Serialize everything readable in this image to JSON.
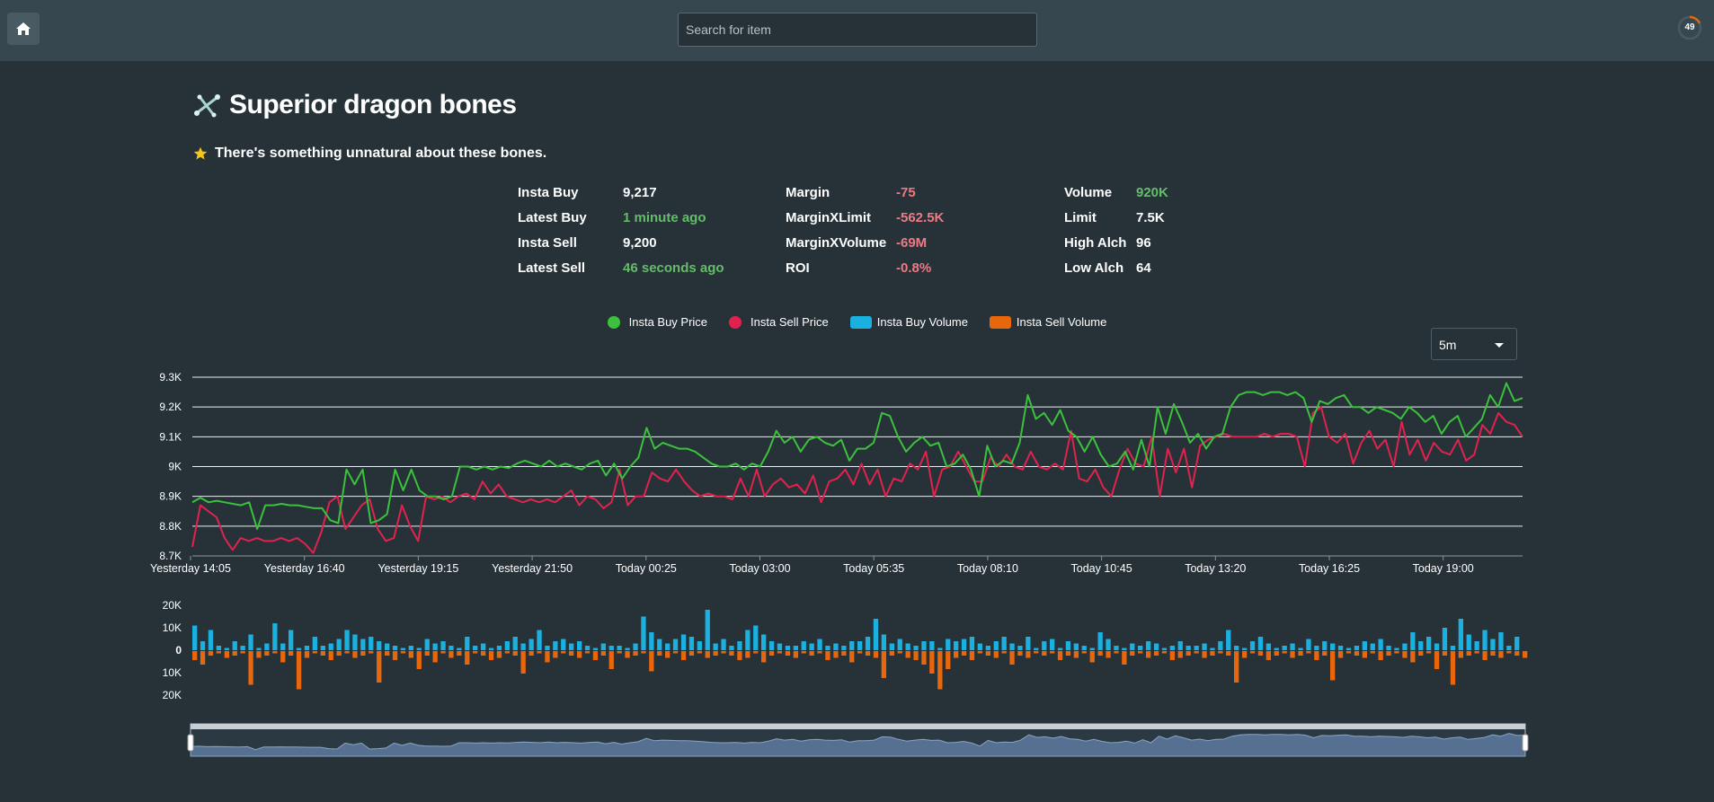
{
  "header": {
    "search_placeholder": "Search for item",
    "refresh_seconds": "49"
  },
  "item": {
    "name": "Superior dragon bones",
    "examine": "There's something unnatural about these bones."
  },
  "stats": {
    "col1": [
      {
        "label": "Insta Buy",
        "value": "9,217",
        "color": "white"
      },
      {
        "label": "Latest Buy",
        "value": "1 minute ago",
        "color": "green"
      },
      {
        "label": "Insta Sell",
        "value": "9,200",
        "color": "white"
      },
      {
        "label": "Latest Sell",
        "value": "46 seconds ago",
        "color": "green"
      }
    ],
    "col2": [
      {
        "label": "Margin",
        "value": "-75",
        "color": "red"
      },
      {
        "label": "MarginXLimit",
        "value": "-562.5K",
        "color": "red"
      },
      {
        "label": "MarginXVolume",
        "value": "-69M",
        "color": "red"
      },
      {
        "label": "ROI",
        "value": "-0.8%",
        "color": "red"
      }
    ],
    "col3": [
      {
        "label": "Volume",
        "value": "920K",
        "color": "green"
      },
      {
        "label": "Limit",
        "value": "7.5K",
        "color": "white"
      },
      {
        "label": "High Alch",
        "value": "96",
        "color": "white"
      },
      {
        "label": "Low Alch",
        "value": "64",
        "color": "white"
      }
    ]
  },
  "legend": [
    "Insta Buy Price",
    "Insta Sell Price",
    "Insta Buy Volume",
    "Insta Sell Volume"
  ],
  "interval": "5m",
  "colors": {
    "buy": "#3cc13c",
    "sell": "#e0234e",
    "buy_vol": "#1ab0e0",
    "sell_vol": "#e8670c",
    "bg": "#263238"
  },
  "chart_data": {
    "type": "line",
    "x_tick_labels": [
      "Yesterday 14:05",
      "Yesterday 16:40",
      "Yesterday 19:15",
      "Yesterday 21:50",
      "Today 00:25",
      "Today 03:00",
      "Today 05:35",
      "Today 08:10",
      "Today 10:45",
      "Today 13:20",
      "Today 16:25",
      "Today 19:00"
    ],
    "price_axis": {
      "ylim": [
        8700,
        9300
      ],
      "tick_labels": [
        "9.3K",
        "9.2K",
        "9.1K",
        "9K",
        "8.9K",
        "8.8K",
        "8.7K"
      ]
    },
    "volume_axis": {
      "ylim": [
        -20000,
        20000
      ],
      "tick_labels": [
        "20K",
        "10K",
        "0",
        "10K",
        "20K"
      ]
    },
    "series": [
      {
        "name": "Insta Buy Price",
        "values": [
          8880,
          8895,
          8880,
          8885,
          8880,
          8875,
          8870,
          8880,
          8790,
          8870,
          8870,
          8875,
          8870,
          8870,
          8865,
          8860,
          8860,
          8820,
          8810,
          8990,
          8940,
          8990,
          8810,
          8820,
          8840,
          8990,
          8920,
          8990,
          8920,
          8900,
          8900,
          8890,
          8900,
          9000,
          9000,
          8990,
          9000,
          8990,
          9000,
          8995,
          9010,
          9020,
          9010,
          9000,
          9020,
          9000,
          9010,
          9000,
          8990,
          9010,
          9020,
          8970,
          9010,
          8960,
          9000,
          9030,
          9130,
          9060,
          9080,
          9070,
          9060,
          9060,
          9050,
          9030,
          9010,
          9000,
          9000,
          9010,
          8990,
          9010,
          9000,
          9050,
          9120,
          9080,
          9100,
          9050,
          9090,
          9100,
          9080,
          9070,
          9090,
          9020,
          9060,
          9060,
          9080,
          9180,
          9170,
          9100,
          9050,
          9080,
          9100,
          9070,
          9080,
          9000,
          9010,
          9040,
          8990,
          8900,
          9070,
          9000,
          9020,
          9010,
          9080,
          9240,
          9160,
          9180,
          9140,
          9190,
          9120,
          9100,
          9050,
          9100,
          9040,
          9000,
          9010,
          9050,
          8990,
          9090,
          9000,
          9200,
          9110,
          9210,
          9150,
          9080,
          9110,
          9060,
          9100,
          9110,
          9200,
          9240,
          9250,
          9250,
          9240,
          9250,
          9250,
          9240,
          9250,
          9230,
          9150,
          9220,
          9210,
          9230,
          9240,
          9200,
          9200,
          9180,
          9200,
          9190,
          9180,
          9160,
          9200,
          9180,
          9150,
          9170,
          9110,
          9150,
          9170,
          9100,
          9130,
          9160,
          9240,
          9200,
          9280,
          9220,
          9230
        ]
      },
      {
        "name": "Insta Sell Price",
        "values": [
          8730,
          8870,
          8850,
          8830,
          8760,
          8720,
          8760,
          8750,
          8760,
          8750,
          8750,
          8760,
          8750,
          8760,
          8740,
          8710,
          8780,
          8880,
          8900,
          8790,
          8830,
          8870,
          8890,
          8790,
          8750,
          8760,
          8870,
          8800,
          8750,
          8900,
          8890,
          8900,
          8880,
          8900,
          8910,
          8890,
          8950,
          8910,
          8940,
          8900,
          8890,
          8880,
          8890,
          8880,
          8890,
          8880,
          8900,
          8920,
          8870,
          8900,
          8890,
          8860,
          8880,
          8990,
          8870,
          8900,
          8900,
          8980,
          8960,
          8950,
          8990,
          8950,
          8920,
          8900,
          8910,
          8900,
          8900,
          8890,
          8960,
          8900,
          8990,
          8900,
          8940,
          8960,
          8930,
          8940,
          8910,
          8970,
          8880,
          8950,
          8960,
          8990,
          8940,
          9010,
          8940,
          8990,
          8900,
          8960,
          8950,
          9010,
          8990,
          9050,
          8900,
          8990,
          9000,
          9050,
          9000,
          8950,
          8950,
          9030,
          9000,
          9040,
          9000,
          8990,
          9050,
          9000,
          8990,
          9010,
          8990,
          9120,
          8960,
          8950,
          8990,
          8930,
          8900,
          8990,
          9060,
          9010,
          9000,
          9100,
          8900,
          9060,
          8980,
          9060,
          8930,
          9070,
          9090,
          9100,
          9110,
          9100,
          9100,
          9100,
          9100,
          9110,
          9100,
          9110,
          9110,
          9100,
          9000,
          9180,
          9200,
          9100,
          9080,
          9110,
          9010,
          9080,
          9120,
          9060,
          9090,
          9000,
          9150,
          9040,
          9090,
          9020,
          9080,
          9050,
          9040,
          9090,
          9020,
          9040,
          9140,
          9110,
          9180,
          9150,
          9140,
          9100
        ]
      },
      {
        "name": "Insta Buy Volume",
        "values": [
          11000,
          4000,
          9000,
          2000,
          1000,
          4000,
          2000,
          7000,
          1000,
          3000,
          12000,
          3000,
          9000,
          1000,
          2000,
          6000,
          2000,
          3000,
          5000,
          9000,
          7000,
          5000,
          6000,
          4000,
          3000,
          2000,
          1000,
          2000,
          1000,
          5000,
          3000,
          4000,
          2000,
          1000,
          6000,
          2000,
          3000,
          1000,
          2000,
          4000,
          6000,
          3000,
          5000,
          9000,
          2000,
          4000,
          5000,
          3000,
          4000,
          2000,
          1000,
          3000,
          2000,
          2000,
          1000,
          3000,
          15000,
          8000,
          5000,
          3000,
          5000,
          7000,
          6000,
          4000,
          18000,
          3000,
          5000,
          2000,
          4000,
          9000,
          11000,
          7000,
          4000,
          3000,
          2000,
          2000,
          4000,
          3000,
          5000,
          2000,
          3000,
          2000,
          4000,
          4000,
          6000,
          14000,
          7000,
          3000,
          5000,
          3000,
          2000,
          4000,
          4000,
          1000,
          5000,
          4000,
          5000,
          6000,
          3000,
          2000,
          4000,
          6000,
          3000,
          2000,
          6000,
          1000,
          4000,
          5000,
          1000,
          4000,
          3000,
          2000,
          1000,
          8000,
          5000,
          2000,
          1000,
          3000,
          2000,
          4000,
          3000,
          1000,
          2000,
          4000,
          2000,
          2000,
          3000,
          1000,
          4000,
          9000,
          2000,
          1000,
          4000,
          6000,
          3000,
          1000,
          2000,
          3000,
          1000,
          5000,
          2000,
          4000,
          3000,
          2000,
          1000,
          2000,
          4000,
          3000,
          5000,
          2000,
          1000,
          3000,
          8000,
          4000,
          6000,
          3000,
          10000,
          2000,
          14000,
          7000,
          4000,
          9000,
          5000,
          8000,
          2000,
          6000
        ]
      },
      {
        "name": "Insta Sell Volume",
        "values": [
          -4000,
          -6000,
          -2000,
          -1000,
          -3000,
          -2000,
          -1000,
          -15000,
          -3000,
          -2000,
          -1000,
          -5000,
          -2000,
          -17000,
          -3000,
          -1000,
          -2000,
          -4000,
          -2000,
          -1000,
          -3000,
          -2000,
          -1000,
          -14000,
          -2000,
          -4000,
          -1000,
          -3000,
          -8000,
          -2000,
          -5000,
          -1000,
          -3000,
          -2000,
          -6000,
          -1000,
          -2000,
          -4000,
          -3000,
          -1000,
          -2000,
          -10000,
          -2000,
          -1000,
          -5000,
          -3000,
          -1000,
          -2000,
          -3000,
          -1000,
          -4000,
          -2000,
          -8000,
          -1000,
          -3000,
          -2000,
          -1000,
          -9000,
          -2000,
          -3000,
          -1000,
          -4000,
          -2000,
          -1000,
          -3000,
          -2000,
          -1000,
          -2000,
          -4000,
          -3000,
          -1000,
          -5000,
          -2000,
          -1000,
          -2000,
          -3000,
          -1000,
          -2000,
          -1000,
          -4000,
          -3000,
          -2000,
          -5000,
          -1000,
          -2000,
          -3000,
          -12000,
          -2000,
          -1000,
          -3000,
          -4000,
          -6000,
          -10000,
          -17000,
          -8000,
          -3000,
          -2000,
          -4000,
          -1000,
          -2000,
          -3000,
          -1000,
          -6000,
          -2000,
          -3000,
          -1000,
          -2000,
          -1000,
          -4000,
          -2000,
          -3000,
          -1000,
          -5000,
          -2000,
          -3000,
          -1000,
          -6000,
          -2000,
          -1000,
          -3000,
          -2000,
          -1000,
          -4000,
          -3000,
          -2000,
          -1000,
          -3000,
          -2000,
          -1000,
          -2000,
          -14000,
          -3000,
          -1000,
          -2000,
          -4000,
          -2000,
          -1000,
          -3000,
          -2000,
          -1000,
          -4000,
          -2000,
          -13000,
          -3000,
          -1000,
          -2000,
          -3000,
          -1000,
          -4000,
          -2000,
          -1000,
          -3000,
          -5000,
          -2000,
          -1000,
          -8000,
          -2000,
          -15000,
          -3000,
          -2000,
          -1000,
          -4000,
          -2000,
          -3000,
          -1000,
          -2000,
          -3000
        ]
      }
    ],
    "legend_position": "top-center",
    "grid": true
  }
}
